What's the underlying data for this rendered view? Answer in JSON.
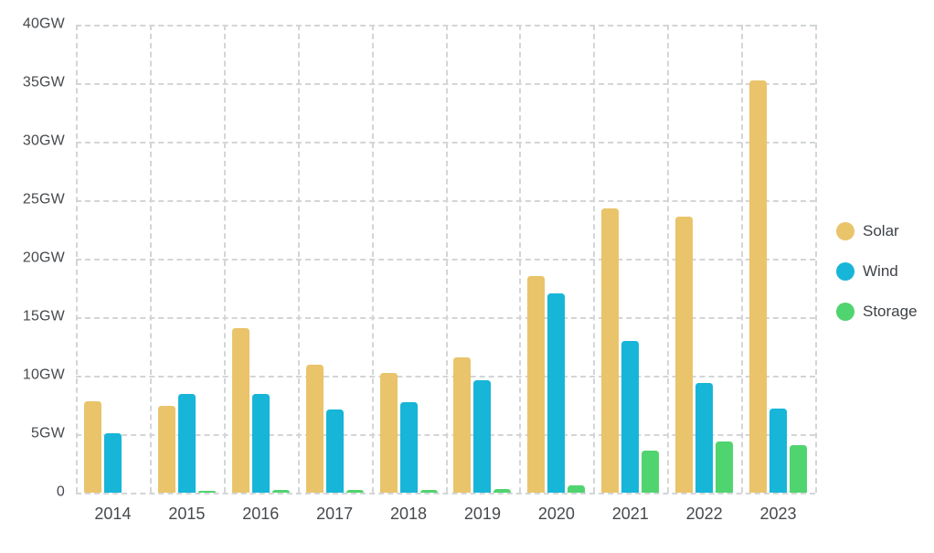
{
  "chart_data": {
    "type": "bar",
    "title": "",
    "categories": [
      "2014",
      "2015",
      "2016",
      "2017",
      "2018",
      "2019",
      "2020",
      "2021",
      "2022",
      "2023"
    ],
    "series": [
      {
        "name": "Solar",
        "color": "#e9c46a",
        "values": [
          7.8,
          7.4,
          14.1,
          10.9,
          10.2,
          11.6,
          18.5,
          24.3,
          23.6,
          35.2
        ]
      },
      {
        "name": "Wind",
        "color": "#17b5d8",
        "values": [
          5.1,
          8.4,
          8.4,
          7.1,
          7.7,
          9.6,
          17.0,
          13.0,
          9.4,
          7.2
        ]
      },
      {
        "name": "Storage",
        "color": "#50d46f",
        "values": [
          0,
          0.15,
          0.2,
          0.2,
          0.25,
          0.3,
          0.6,
          3.6,
          4.4,
          4.1
        ]
      }
    ],
    "unit": "GW",
    "ylim": [
      0,
      40
    ],
    "y_tick_step": 5,
    "y_tick_labels": [
      "40GW",
      "35GW",
      "30GW",
      "25GW",
      "20GW",
      "15GW",
      "10GW",
      "5GW",
      "0"
    ],
    "xlabel": "",
    "ylabel": "",
    "grid": "dashed horizontal and vertical",
    "legend_position": "right"
  },
  "colors": {
    "gridline": "#d3d5d7",
    "axis_text": "#46494d",
    "background": "#ffffff"
  }
}
